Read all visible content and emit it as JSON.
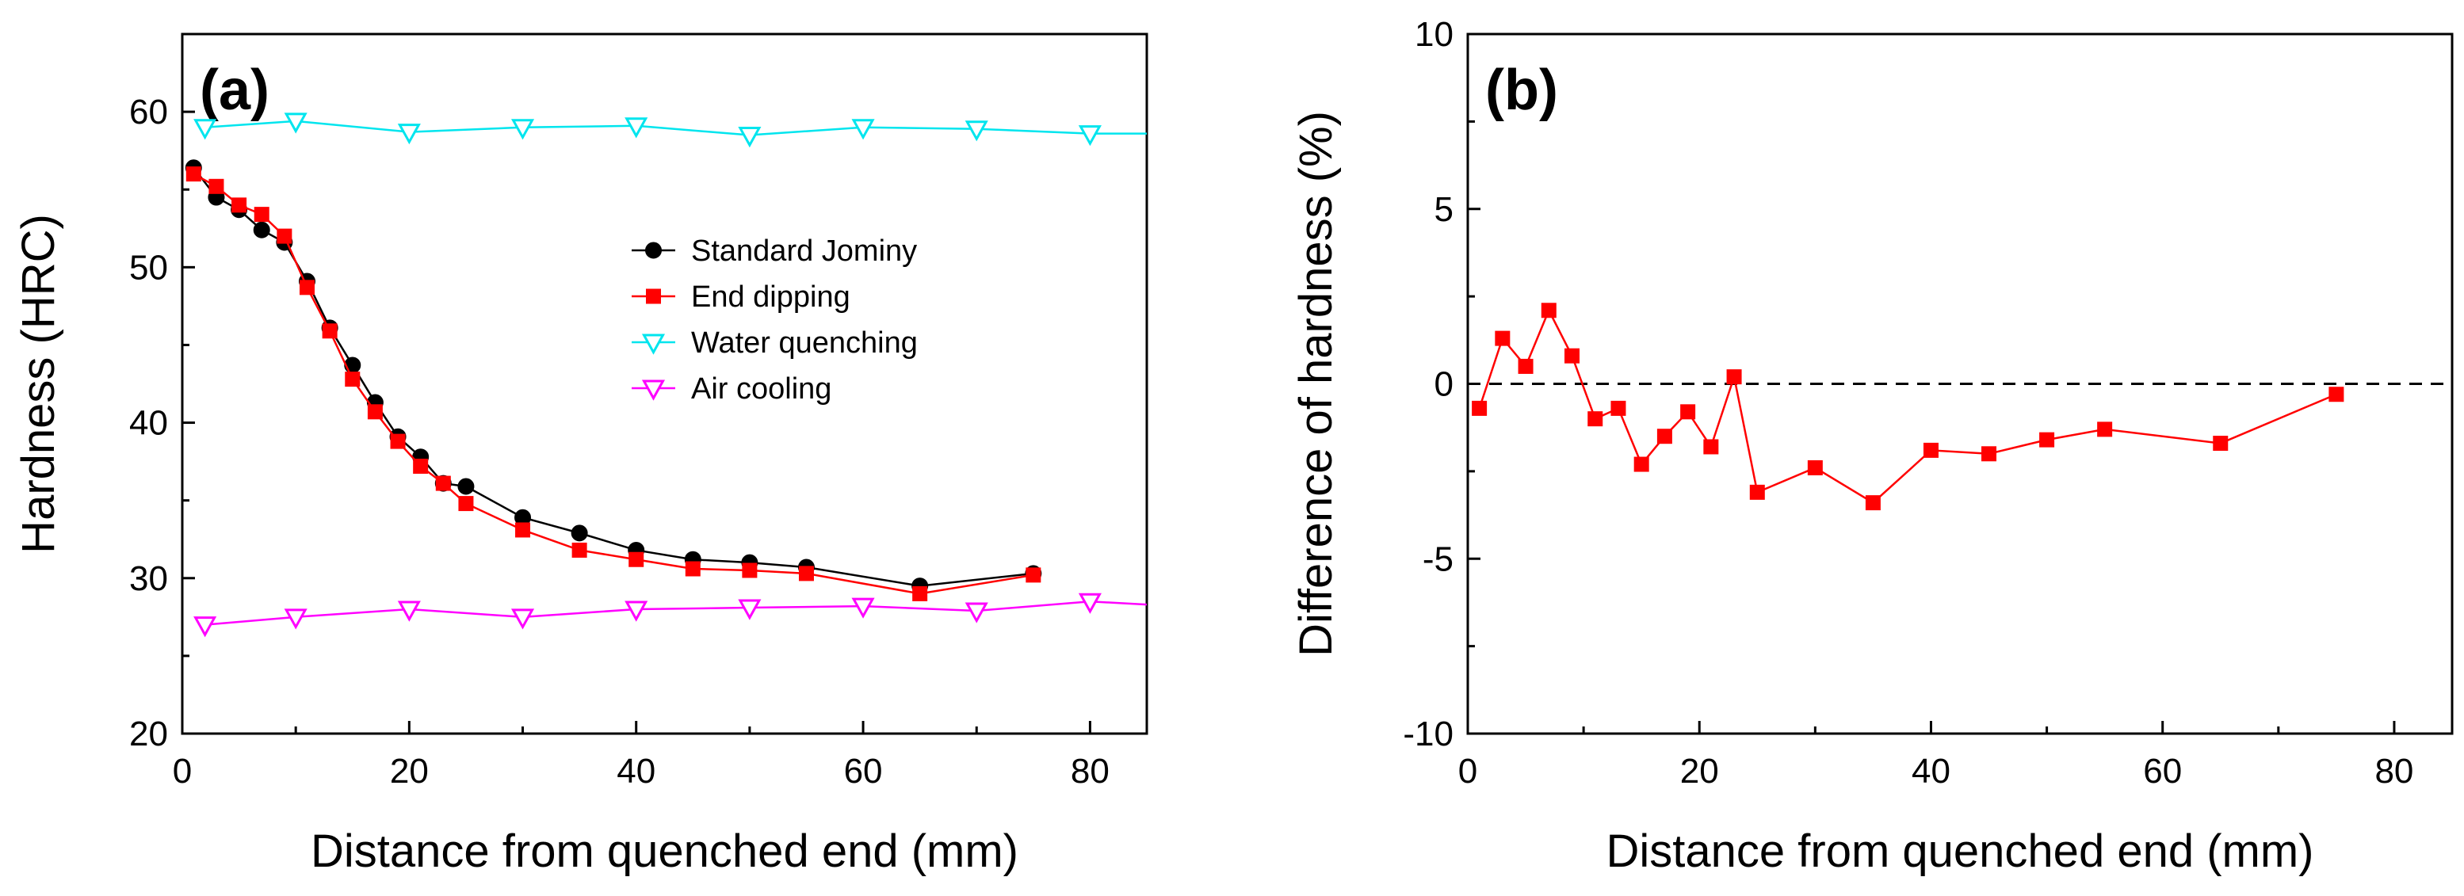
{
  "chart_data": [
    {
      "panel_label": "(a)",
      "type": "line",
      "xlabel": "Distance from quenched end (mm)",
      "ylabel": "Hardness (HRC)",
      "xlim": [
        0,
        85
      ],
      "ylim": [
        20,
        65
      ],
      "xticks": [
        0,
        20,
        40,
        60,
        80
      ],
      "yticks": [
        20,
        30,
        40,
        50,
        60
      ],
      "legend_position": "center-right",
      "series": [
        {
          "name": "Standard Jominy",
          "color": "#000000",
          "marker": "circle",
          "x": [
            1,
            3,
            5,
            7,
            9,
            11,
            13,
            15,
            17,
            19,
            21,
            23,
            25,
            30,
            35,
            40,
            45,
            50,
            55,
            65,
            75
          ],
          "y": [
            56.4,
            54.5,
            53.7,
            52.4,
            51.6,
            49.1,
            46.1,
            43.7,
            41.3,
            39.1,
            37.8,
            36.1,
            35.9,
            33.9,
            32.9,
            31.8,
            31.2,
            31.0,
            30.7,
            29.5,
            30.3
          ]
        },
        {
          "name": "End dipping",
          "color": "#ff0000",
          "marker": "square",
          "x": [
            1,
            3,
            5,
            7,
            9,
            11,
            13,
            15,
            17,
            19,
            21,
            23,
            25,
            30,
            35,
            40,
            45,
            50,
            55,
            65,
            75
          ],
          "y": [
            56.0,
            55.2,
            54.0,
            53.4,
            52.0,
            48.7,
            45.9,
            42.8,
            40.7,
            38.8,
            37.2,
            36.1,
            34.8,
            33.1,
            31.8,
            31.2,
            30.6,
            30.5,
            30.3,
            29.0,
            30.2
          ]
        },
        {
          "name": "Water quenching",
          "color": "#00e5ee",
          "marker": "triangle-down-open",
          "x": [
            2,
            10,
            20,
            30,
            40,
            50,
            60,
            70,
            80,
            85
          ],
          "y": [
            59.0,
            59.4,
            58.7,
            59.0,
            59.1,
            58.5,
            59.0,
            58.9,
            58.6,
            58.6
          ],
          "marker_count": 9
        },
        {
          "name": "Air cooling",
          "color": "#ff00ff",
          "marker": "triangle-down-open",
          "x": [
            2,
            10,
            20,
            30,
            40,
            50,
            60,
            70,
            80,
            85
          ],
          "y": [
            27.0,
            27.5,
            28.0,
            27.5,
            28.0,
            28.1,
            28.2,
            27.9,
            28.5,
            28.3
          ],
          "marker_count": 9
        }
      ]
    },
    {
      "panel_label": "(b)",
      "type": "line",
      "xlabel": "Distance from quenched end (mm)",
      "ylabel": "Difference of hardness (%)",
      "xlim": [
        0,
        85
      ],
      "ylim": [
        -10,
        10
      ],
      "xticks": [
        0,
        20,
        40,
        60,
        80
      ],
      "yticks": [
        -10,
        -5,
        0,
        5,
        10
      ],
      "reference_line": {
        "y": 0,
        "style": "dashed",
        "color": "#000000"
      },
      "series": [
        {
          "name": "Difference of hardness",
          "color": "#ff0000",
          "marker": "square",
          "x": [
            1,
            3,
            5,
            7,
            9,
            11,
            13,
            15,
            17,
            19,
            21,
            23,
            25,
            30,
            35,
            40,
            45,
            50,
            55,
            65,
            75
          ],
          "y": [
            -0.7,
            1.3,
            0.5,
            2.1,
            0.8,
            -1.0,
            -0.7,
            -2.3,
            -1.5,
            -0.8,
            -1.8,
            0.2,
            -3.1,
            -2.4,
            -3.4,
            -1.9,
            -2.0,
            -1.6,
            -1.3,
            -1.7,
            -0.3
          ]
        }
      ]
    }
  ]
}
